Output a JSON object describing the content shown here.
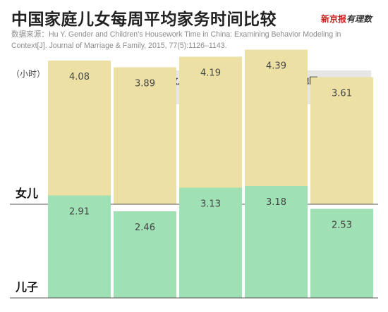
{
  "title": "中国家庭儿女每周平均家务时间比较",
  "source": "数据来源：Hu Y. Gender and Children's Housework Time in China: Examining Behavior Modeling in Context[J]. Journal of Marriage & Family, 2015, 77(5):1126–1143.",
  "logo": {
    "part1": "新京报",
    "part2": "有理数"
  },
  "unit": "（小时）",
  "colors": {
    "daughter_bar": "#ede0a4",
    "son_bar": "#9fe0b4",
    "group_header_bg": "#e6e6e6",
    "text": "#444444"
  },
  "chart_data": {
    "type": "bar",
    "categories": [
      "总体",
      "父亲工作",
      "双职工家庭",
      "农村",
      "城市"
    ],
    "groups": [
      {
        "label": "家庭收入类型",
        "categories": [
          "父亲工作",
          "双职工家庭"
        ]
      },
      {
        "label": "地区",
        "categories": [
          "农村",
          "城市"
        ]
      }
    ],
    "series": [
      {
        "name": "女儿",
        "values": [
          4.08,
          3.89,
          4.19,
          4.39,
          3.61
        ]
      },
      {
        "name": "儿子",
        "values": [
          2.91,
          2.46,
          3.13,
          3.18,
          2.53
        ]
      }
    ],
    "ylabel": "（小时）"
  }
}
